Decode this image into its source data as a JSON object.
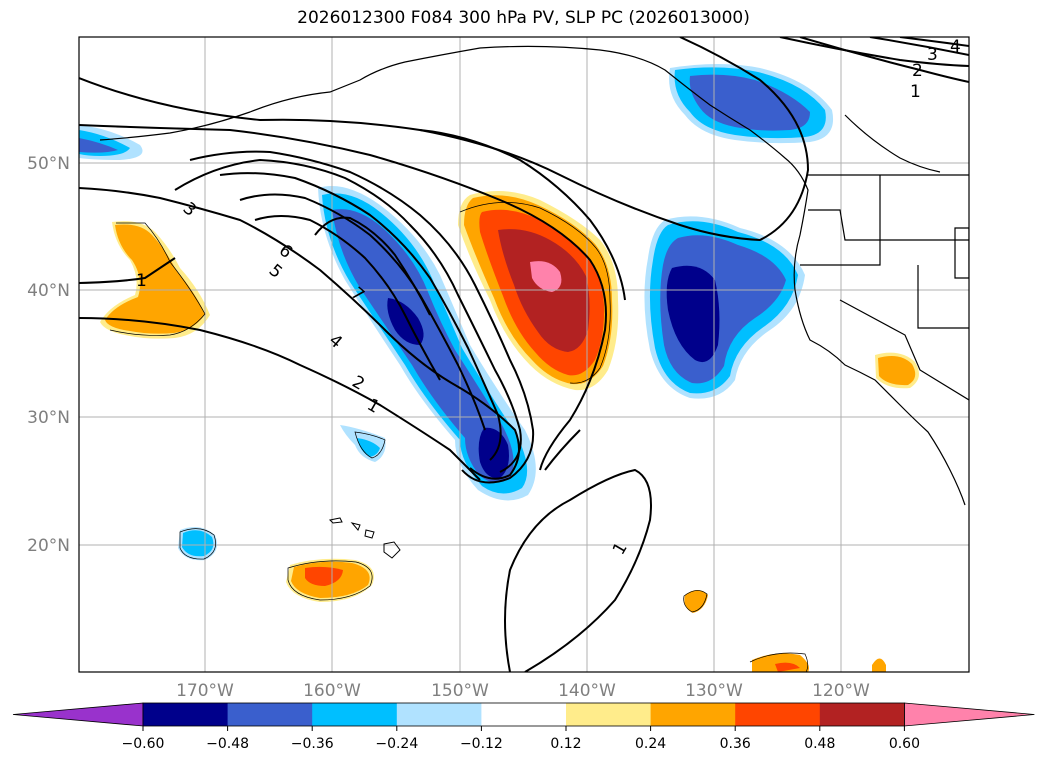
{
  "title": "2026012300 F084 300 hPa PV, SLP PC (2026013000)",
  "lat_labels": [
    "50°N",
    "40°N",
    "30°N",
    "20°N"
  ],
  "lon_labels": [
    "170°W",
    "160°W",
    "150°W",
    "140°W",
    "130°W",
    "120°W"
  ],
  "contour_labels": [
    "3",
    "2",
    "1",
    "4",
    "6",
    "5",
    "7",
    "4",
    "2",
    "1",
    "3",
    "1",
    "1"
  ],
  "colorbar": {
    "ticks": [
      "−0.60",
      "−0.48",
      "−0.36",
      "−0.24",
      "−0.12",
      "0.12",
      "0.24",
      "0.36",
      "0.48",
      "0.60"
    ],
    "colors": [
      "#9932cc",
      "#00008b",
      "#3a5fcd",
      "#00bfff",
      "#b0e2ff",
      "#ffffff",
      "#ffec8b",
      "#ffa500",
      "#ff4500",
      "#b22222",
      "#ff82ab"
    ]
  }
}
